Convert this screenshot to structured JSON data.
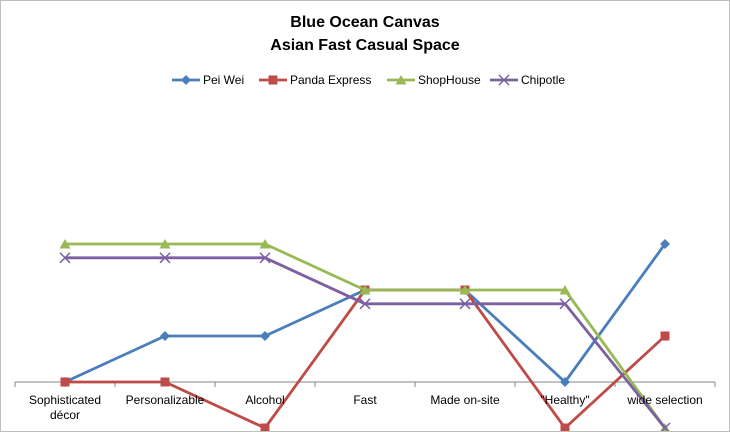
{
  "chart_data": {
    "type": "line",
    "title": "Blue Ocean Canvas",
    "subtitle": "Asian Fast Casual Space",
    "categories": [
      "Sophisticated décor",
      "Personalizable",
      "Alcohol",
      "Fast",
      "Made on-site",
      "\"Healthy\"",
      "wide selection"
    ],
    "ylim": [
      0,
      10
    ],
    "grid": false,
    "legend_position": "top",
    "series": [
      {
        "name": "Pei Wei",
        "values": [
          2,
          3,
          3,
          4,
          4,
          2,
          5
        ],
        "color": "#4a7ebb",
        "marker": "diamond"
      },
      {
        "name": "Panda Express",
        "values": [
          2,
          2,
          1,
          4,
          4,
          1,
          3
        ],
        "color": "#be4b48",
        "marker": "square"
      },
      {
        "name": "ShopHouse",
        "values": [
          5,
          5,
          5,
          4,
          4,
          4,
          1
        ],
        "color": "#98b954",
        "marker": "triangle"
      },
      {
        "name": "Chipotle",
        "values": [
          4.7,
          4.7,
          4.7,
          3.7,
          3.7,
          3.7,
          1
        ],
        "color": "#7d60a0",
        "marker": "x"
      }
    ]
  }
}
